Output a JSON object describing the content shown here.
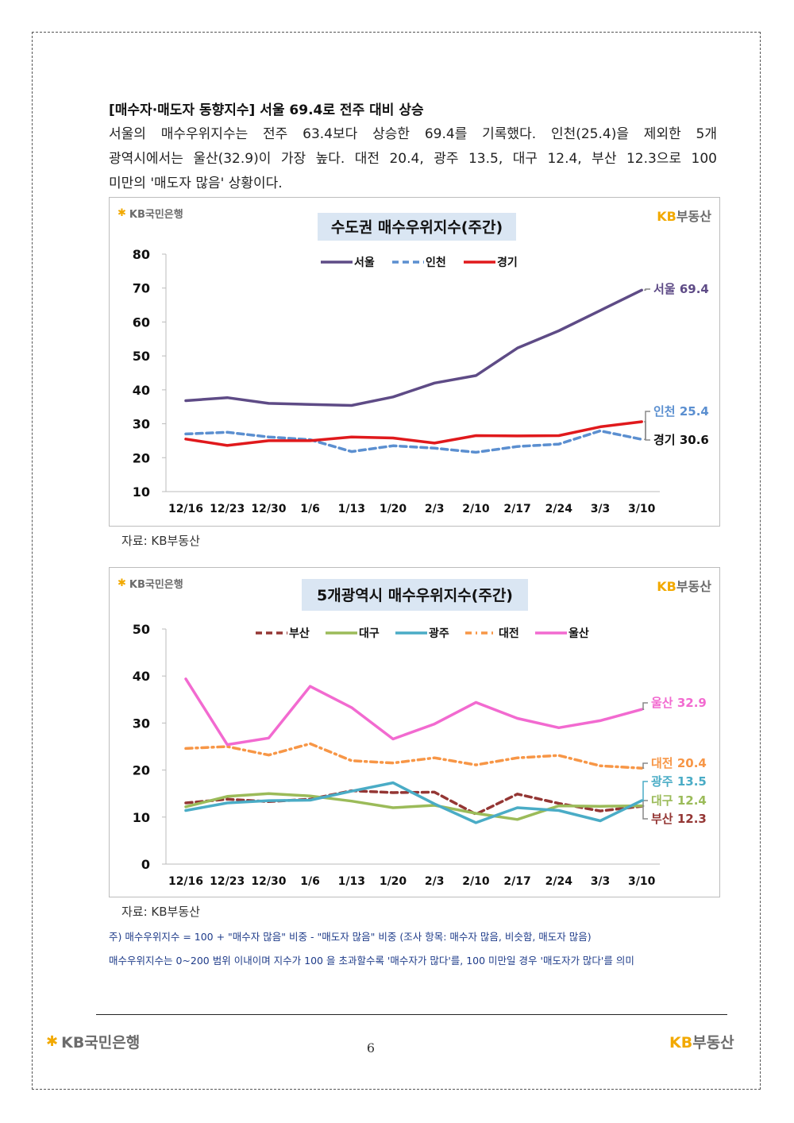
{
  "heading": "[매수자·매도자 동향지수] 서울 69.4로 전주 대비 상승",
  "paragraph": {
    "line1": "서울의 매수우위지수는 전주 63.4보다 상승한 69.4를 기록했다. 인천(25.4)을 제외한 5개",
    "line2": "광역시에서는 울산(32.9)이 가장 높다. 대전 20.4, 광주 13.5, 대구 12.4, 부산 12.3으로 100",
    "line3": "미만의 '매도자 많음' 상황이다."
  },
  "logos": {
    "bank_name": "KB국민은행",
    "realestate_kb": "KB",
    "realestate_name": "부동산"
  },
  "source_label": "자료: KB부동산",
  "notes": {
    "line1": "주) 매수우위지수 = 100 + \"매수자 많음\" 비중 - \"매도자 많음\" 비중  (조사 항목: 매수자 많음, 비슷함, 매도자 많음)",
    "line2": "매수우위지수는 0~200 범위 이내이며 지수가 100 을 초과할수록 '매수자가 많다'를, 100 미만일 경우 '매도자가 많다'를 의미"
  },
  "page_number": "6",
  "colors": {
    "seoul": "#5e4b86",
    "incheon": "#5b8fd0",
    "gyeonggi": "#e0191c",
    "busan": "#943634",
    "daegu": "#9bbb59",
    "gwangju": "#4aacc6",
    "daejeon": "#f79646",
    "ulsan": "#f26ad0",
    "title_bg": "#dae6f3",
    "kb_yellow": "#f2a900"
  },
  "chart_data": [
    {
      "type": "line",
      "title": "수도권 매수우위지수(주간)",
      "categories": [
        "12/16",
        "12/23",
        "12/30",
        "1/6",
        "1/13",
        "1/20",
        "2/3",
        "2/10",
        "2/17",
        "2/24",
        "3/3",
        "3/10"
      ],
      "ylim": [
        10,
        80
      ],
      "yticks": [
        10,
        20,
        30,
        40,
        50,
        60,
        70,
        80
      ],
      "legend_position": "top",
      "series": [
        {
          "name": "서울",
          "style": "solid",
          "color_key": "seoul",
          "values": [
            36.8,
            37.7,
            36.0,
            35.7,
            35.4,
            37.9,
            42.0,
            44.2,
            52.3,
            57.4,
            63.4,
            69.4
          ],
          "end_label": "서울 69.4"
        },
        {
          "name": "인천",
          "style": "dashed",
          "color_key": "incheon",
          "values": [
            27.0,
            27.5,
            26.1,
            25.3,
            21.8,
            23.5,
            22.8,
            21.6,
            23.3,
            24.0,
            27.9,
            25.4
          ],
          "end_label": "인천 25.4"
        },
        {
          "name": "경기",
          "style": "solid",
          "color_key": "gyeonggi",
          "values": [
            25.5,
            23.6,
            25.0,
            25.0,
            26.1,
            25.8,
            24.3,
            26.5,
            26.4,
            26.5,
            29.1,
            30.6
          ],
          "end_label": "경기 30.6"
        }
      ]
    },
    {
      "type": "line",
      "title": "5개광역시 매수우위지수(주간)",
      "categories": [
        "12/16",
        "12/23",
        "12/30",
        "1/6",
        "1/13",
        "1/20",
        "2/3",
        "2/10",
        "2/17",
        "2/24",
        "3/3",
        "3/10"
      ],
      "ylim": [
        0,
        50
      ],
      "yticks": [
        0,
        10,
        20,
        30,
        40,
        50
      ],
      "legend_position": "top",
      "series": [
        {
          "name": "부산",
          "style": "dashed",
          "color_key": "busan",
          "values": [
            13.0,
            13.8,
            13.3,
            13.8,
            15.6,
            15.2,
            15.3,
            10.6,
            14.9,
            12.9,
            11.3,
            12.3
          ],
          "end_label": "부산 12.3"
        },
        {
          "name": "대구",
          "style": "solid",
          "color_key": "daegu",
          "values": [
            12.2,
            14.4,
            15.0,
            14.5,
            13.4,
            12.0,
            12.5,
            10.8,
            9.5,
            12.4,
            12.3,
            12.4
          ],
          "end_label": "대구 12.4"
        },
        {
          "name": "광주",
          "style": "solid",
          "color_key": "gwangju",
          "values": [
            11.4,
            13.0,
            13.5,
            13.6,
            15.5,
            17.3,
            12.8,
            8.8,
            12.0,
            11.4,
            9.2,
            13.5
          ],
          "end_label": "광주 13.5"
        },
        {
          "name": "대전",
          "style": "dashdot",
          "color_key": "daejeon",
          "values": [
            24.6,
            25.0,
            23.2,
            25.6,
            22.0,
            21.5,
            22.6,
            21.1,
            22.6,
            23.1,
            20.9,
            20.4
          ],
          "end_label": "대전 20.4"
        },
        {
          "name": "울산",
          "style": "solid",
          "color_key": "ulsan",
          "values": [
            39.4,
            25.4,
            26.8,
            37.8,
            33.3,
            26.6,
            29.8,
            34.4,
            31.0,
            29.0,
            30.5,
            32.9
          ],
          "end_label": "울산 32.9"
        }
      ]
    }
  ]
}
